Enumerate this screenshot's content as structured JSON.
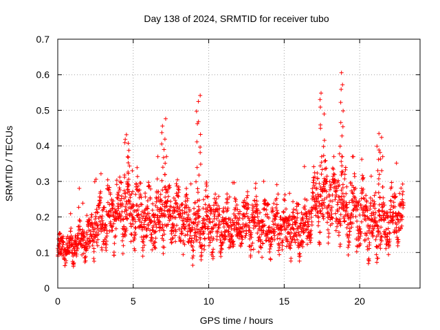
{
  "chart_data": {
    "type": "scatter",
    "title": "Day 138 of 2024, SRMTID for receiver tubo",
    "xlabel": "GPS time / hours",
    "ylabel": "SRMTID / TECUs",
    "xlim": [
      0,
      24
    ],
    "ylim": [
      0,
      0.7
    ],
    "xticks": [
      0,
      5,
      10,
      15,
      20
    ],
    "yticks": [
      0,
      0.1,
      0.2,
      0.3,
      0.4,
      0.5,
      0.6,
      0.7
    ],
    "xtick_labels": [
      "0",
      "5",
      "10",
      "15",
      "20"
    ],
    "ytick_labels": [
      "0",
      "0.1",
      "0.2",
      "0.3",
      "0.4",
      "0.5",
      "0.6",
      "0.7"
    ],
    "grid": true,
    "marker": "+",
    "color": "#ff0000",
    "x_extent_hours": [
      0,
      22.9
    ],
    "notable_peaks": [
      {
        "x": 4.6,
        "y": 0.44
      },
      {
        "x": 7.0,
        "y": 0.47
      },
      {
        "x": 9.3,
        "y": 0.54
      },
      {
        "x": 17.5,
        "y": 0.55
      },
      {
        "x": 18.8,
        "y": 0.6
      },
      {
        "x": 21.3,
        "y": 0.43
      }
    ],
    "envelope": [
      {
        "x": 0.0,
        "center": 0.11,
        "spread": 0.03
      },
      {
        "x": 1.0,
        "center": 0.12,
        "spread": 0.035
      },
      {
        "x": 2.0,
        "center": 0.14,
        "spread": 0.035
      },
      {
        "x": 2.5,
        "center": 0.17,
        "spread": 0.05
      },
      {
        "x": 3.0,
        "center": 0.19,
        "spread": 0.06
      },
      {
        "x": 4.0,
        "center": 0.22,
        "spread": 0.07
      },
      {
        "x": 5.0,
        "center": 0.22,
        "spread": 0.07
      },
      {
        "x": 6.0,
        "center": 0.19,
        "spread": 0.06
      },
      {
        "x": 7.0,
        "center": 0.21,
        "spread": 0.06
      },
      {
        "x": 8.0,
        "center": 0.2,
        "spread": 0.06
      },
      {
        "x": 9.0,
        "center": 0.17,
        "spread": 0.06
      },
      {
        "x": 10.0,
        "center": 0.19,
        "spread": 0.06
      },
      {
        "x": 11.0,
        "center": 0.17,
        "spread": 0.05
      },
      {
        "x": 12.0,
        "center": 0.18,
        "spread": 0.05
      },
      {
        "x": 13.0,
        "center": 0.18,
        "spread": 0.06
      },
      {
        "x": 14.0,
        "center": 0.17,
        "spread": 0.05
      },
      {
        "x": 15.0,
        "center": 0.17,
        "spread": 0.05
      },
      {
        "x": 16.0,
        "center": 0.16,
        "spread": 0.05
      },
      {
        "x": 16.6,
        "center": 0.18,
        "spread": 0.04
      },
      {
        "x": 17.0,
        "center": 0.24,
        "spread": 0.06
      },
      {
        "x": 18.0,
        "center": 0.25,
        "spread": 0.07
      },
      {
        "x": 19.0,
        "center": 0.24,
        "spread": 0.07
      },
      {
        "x": 20.0,
        "center": 0.2,
        "spread": 0.07
      },
      {
        "x": 21.0,
        "center": 0.18,
        "spread": 0.06
      },
      {
        "x": 22.0,
        "center": 0.19,
        "spread": 0.06
      },
      {
        "x": 22.9,
        "center": 0.22,
        "spread": 0.06
      }
    ]
  }
}
